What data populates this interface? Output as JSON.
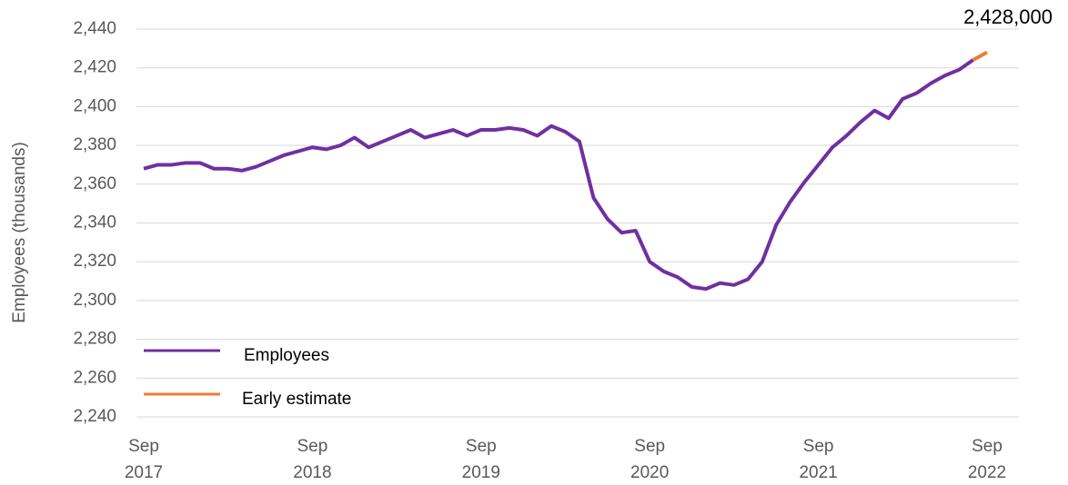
{
  "chart_data": {
    "type": "line",
    "y_label": "Employees (thousands)",
    "categories": [
      "Sep 2017",
      null,
      null,
      null,
      null,
      null,
      null,
      null,
      null,
      null,
      null,
      null,
      "Sep 2018",
      null,
      null,
      null,
      null,
      null,
      null,
      null,
      null,
      null,
      null,
      null,
      "Sep 2019",
      null,
      null,
      null,
      null,
      null,
      null,
      null,
      null,
      null,
      null,
      null,
      "Sep 2020",
      null,
      null,
      null,
      null,
      null,
      null,
      null,
      null,
      null,
      null,
      null,
      "Sep 2021",
      null,
      null,
      null,
      null,
      null,
      null,
      null,
      null,
      null,
      null,
      null,
      "Sep 2022"
    ],
    "series": [
      {
        "name": "Employees",
        "color": "#7030a0",
        "values": [
          2368,
          2370,
          2370,
          2371,
          2371,
          2368,
          2368,
          2367,
          2369,
          2372,
          2375,
          2377,
          2379,
          2378,
          2380,
          2384,
          2379,
          2382,
          2385,
          2388,
          2384,
          2386,
          2388,
          2385,
          2388,
          2388,
          2389,
          2388,
          2385,
          2390,
          2387,
          2382,
          2353,
          2342,
          2335,
          2336,
          2320,
          2315,
          2312,
          2307,
          2306,
          2309,
          2308,
          2311,
          2320,
          2339,
          2351,
          2361,
          2370,
          2379,
          2385,
          2392,
          2398,
          2394,
          2404,
          2407,
          2412,
          2416,
          2419,
          2424,
          null
        ]
      },
      {
        "name": "Early estimate",
        "color": "#ed7d31",
        "values": [
          null,
          null,
          null,
          null,
          null,
          null,
          null,
          null,
          null,
          null,
          null,
          null,
          null,
          null,
          null,
          null,
          null,
          null,
          null,
          null,
          null,
          null,
          null,
          null,
          null,
          null,
          null,
          null,
          null,
          null,
          null,
          null,
          null,
          null,
          null,
          null,
          null,
          null,
          null,
          null,
          null,
          null,
          null,
          null,
          null,
          null,
          null,
          null,
          null,
          null,
          null,
          null,
          null,
          null,
          null,
          null,
          null,
          null,
          null,
          2424,
          2428
        ]
      }
    ],
    "annotation": "2,428,000",
    "ylim": [
      2240,
      2440
    ],
    "yticks": [
      {
        "value": 2240,
        "label": "2,240"
      },
      {
        "value": 2260,
        "label": "2,260"
      },
      {
        "value": 2280,
        "label": "2,280"
      },
      {
        "value": 2300,
        "label": "2,300"
      },
      {
        "value": 2320,
        "label": "2,320"
      },
      {
        "value": 2340,
        "label": "2,340"
      },
      {
        "value": 2360,
        "label": "2,360"
      },
      {
        "value": 2380,
        "label": "2,380"
      },
      {
        "value": 2400,
        "label": "2,400"
      },
      {
        "value": 2420,
        "label": "2,420"
      },
      {
        "value": 2440,
        "label": "2,440"
      }
    ],
    "grid": true,
    "legend": "bottom-left"
  }
}
